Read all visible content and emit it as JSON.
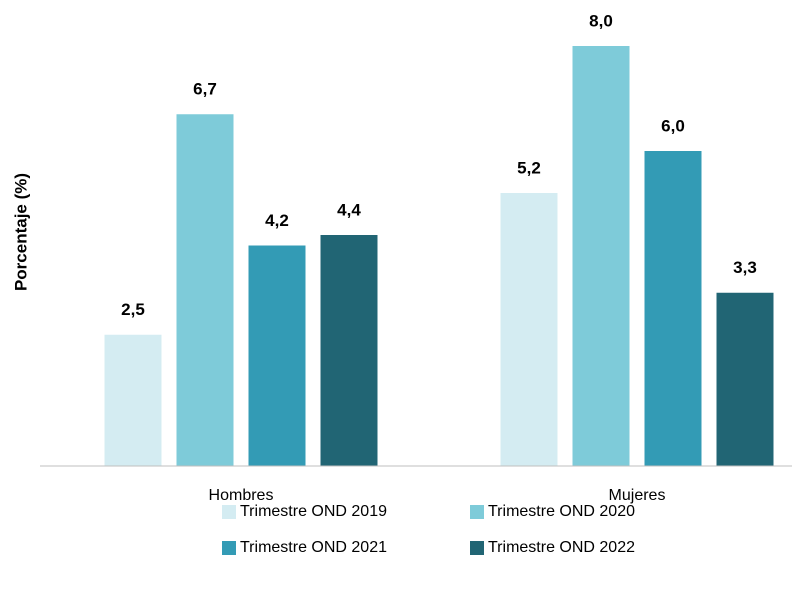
{
  "chart_data": {
    "type": "bar",
    "y_label": "Porcentaje (%)",
    "categories": [
      "Hombres",
      "Mujeres"
    ],
    "series": [
      {
        "name": "Trimestre OND 2019",
        "color": "#d4ecf2",
        "values": [
          2.5,
          5.2
        ],
        "value_labels": [
          "2,5",
          "5,2"
        ]
      },
      {
        "name": "Trimestre OND 2020",
        "color": "#7ecbd9",
        "values": [
          6.7,
          8.0
        ],
        "value_labels": [
          "6,7",
          "8,0"
        ]
      },
      {
        "name": "Trimestre OND 2021",
        "color": "#339bb5",
        "values": [
          4.2,
          6.0
        ],
        "value_labels": [
          "4,2",
          "6,0"
        ]
      },
      {
        "name": "Trimestre OND 2022",
        "color": "#216574",
        "values": [
          4.4,
          3.3
        ],
        "value_labels": [
          "4,4",
          "3,3"
        ]
      }
    ],
    "ylim": [
      0,
      8
    ],
    "legend": "bottom"
  }
}
